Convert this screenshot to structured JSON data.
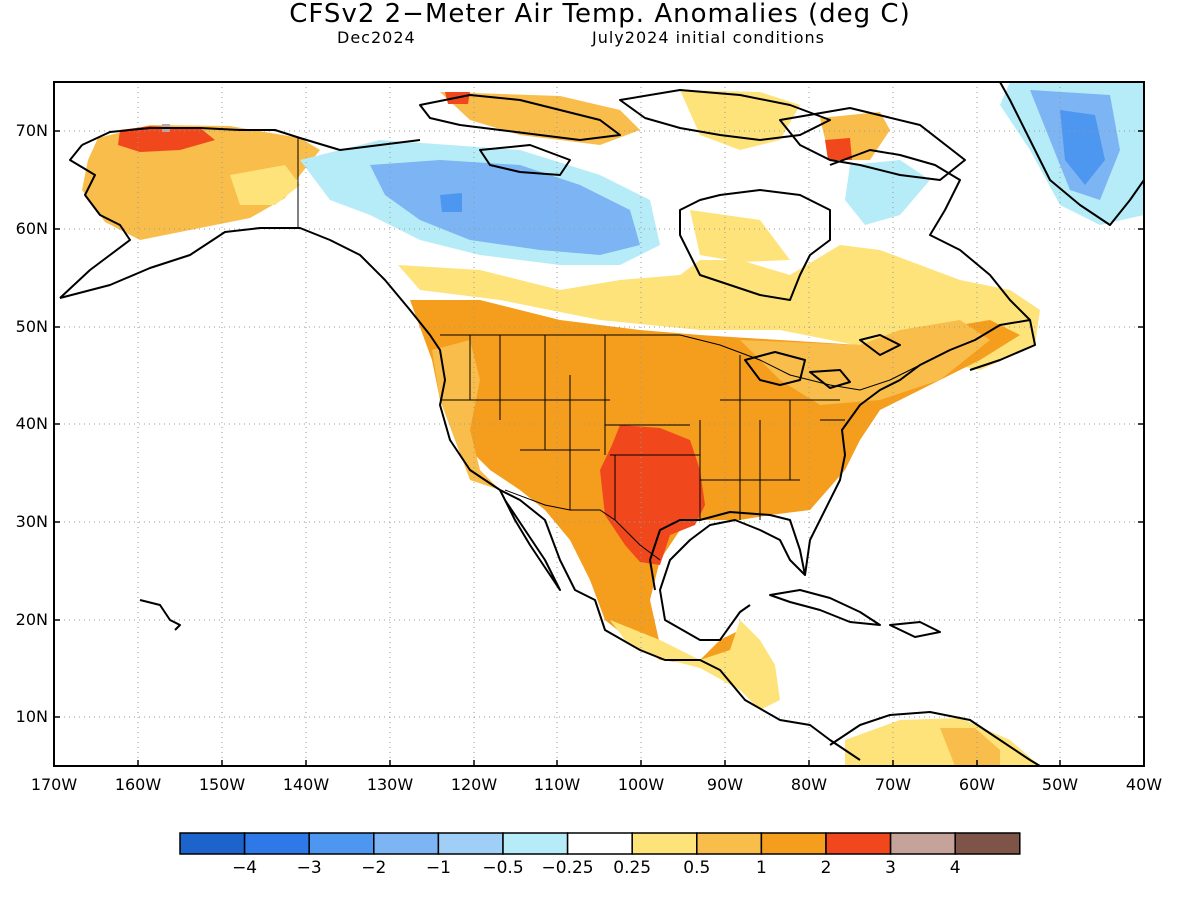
{
  "header": {
    "title": "CFSv2 2−Meter Air Temp. Anomalies (deg C)",
    "subtitle_left": "Dec2024",
    "subtitle_right": "July2024 initial conditions"
  },
  "map": {
    "lat_labels": [
      "70N",
      "60N",
      "50N",
      "40N",
      "30N",
      "20N",
      "10N"
    ],
    "lon_labels": [
      "170W",
      "160W",
      "150W",
      "140W",
      "130W",
      "120W",
      "110W",
      "100W",
      "90W",
      "80W",
      "70W",
      "60W",
      "50W",
      "40W"
    ],
    "region": "North America"
  },
  "colorbar": {
    "labels": [
      "−4",
      "−3",
      "−2",
      "−1",
      "−0.5",
      "−0.25",
      "0.25",
      "0.5",
      "1",
      "2",
      "3",
      "4"
    ],
    "colors": [
      "#1c63cc",
      "#2e78e8",
      "#4d97f0",
      "#7cb4f4",
      "#9fcff7",
      "#b6ecf7",
      "#ffffff",
      "#fde37a",
      "#f8bd4a",
      "#f59d1d",
      "#f0471c",
      "#c6a39a",
      "#7d5447"
    ]
  },
  "colors": {
    "ocean": "#ffffff",
    "gridline": "#999999",
    "coast": "#000000"
  }
}
